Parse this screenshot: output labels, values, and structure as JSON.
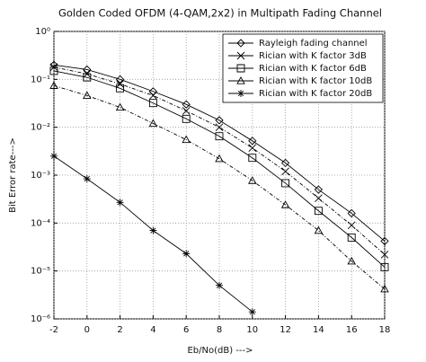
{
  "chart_data": {
    "type": "line",
    "title": "Golden Coded OFDM (4-QAM,2x2) in Multipath Fading Channel",
    "x_label": "Eb/No(dB) --->",
    "y_label": "Bit Error rate--->",
    "x": [
      -2,
      0,
      2,
      4,
      6,
      8,
      10,
      12,
      14,
      16,
      18
    ],
    "xlim": [
      -2,
      18
    ],
    "xticks": [
      -2,
      0,
      2,
      4,
      6,
      8,
      10,
      12,
      14,
      16,
      18
    ],
    "ylim": [
      1e-06,
      1
    ],
    "yticks": [
      {
        "value": 1e-06,
        "label": "10⁻⁶"
      },
      {
        "value": 1e-05,
        "label": "10⁻⁵"
      },
      {
        "value": 0.0001,
        "label": "10⁻⁴"
      },
      {
        "value": 0.001,
        "label": "10⁻³"
      },
      {
        "value": 0.01,
        "label": "10⁻²"
      },
      {
        "value": 0.1,
        "label": "10⁻¹"
      },
      {
        "value": 1,
        "label": "10⁰"
      }
    ],
    "log_y": true,
    "grid": true,
    "legend": "top-right",
    "series": [
      {
        "name": "Rayleigh fading channel",
        "color": "#000000",
        "marker": "diamond",
        "values": [
          0.2,
          0.16,
          0.1,
          0.056,
          0.03,
          0.014,
          0.0052,
          0.0018,
          0.0005,
          0.00016,
          4.2e-05
        ]
      },
      {
        "name": "Rician with K factor 3dB",
        "color": "#000000",
        "marker": "x",
        "values": [
          0.18,
          0.13,
          0.08,
          0.046,
          0.022,
          0.01,
          0.0037,
          0.0012,
          0.00033,
          9e-05,
          2.2e-05
        ]
      },
      {
        "name": "Rician with K factor 6dB",
        "color": "#000000",
        "marker": "square",
        "values": [
          0.15,
          0.11,
          0.065,
          0.032,
          0.015,
          0.0065,
          0.0023,
          0.00068,
          0.00018,
          5e-05,
          1.2e-05
        ]
      },
      {
        "name": "Rician with K factor 10dB",
        "color": "#000000",
        "marker": "triangle",
        "values": [
          0.074,
          0.046,
          0.026,
          0.012,
          0.0055,
          0.0022,
          0.00077,
          0.00024,
          7e-05,
          1.6e-05,
          4.2e-06
        ]
      },
      {
        "name": "Rician with K factor 20dB",
        "color": "#000000",
        "marker": "star",
        "values": [
          0.0025,
          0.00084,
          0.00027,
          7e-05,
          2.3e-05,
          5e-06,
          1.4e-06,
          null,
          null,
          null,
          null
        ]
      }
    ]
  }
}
